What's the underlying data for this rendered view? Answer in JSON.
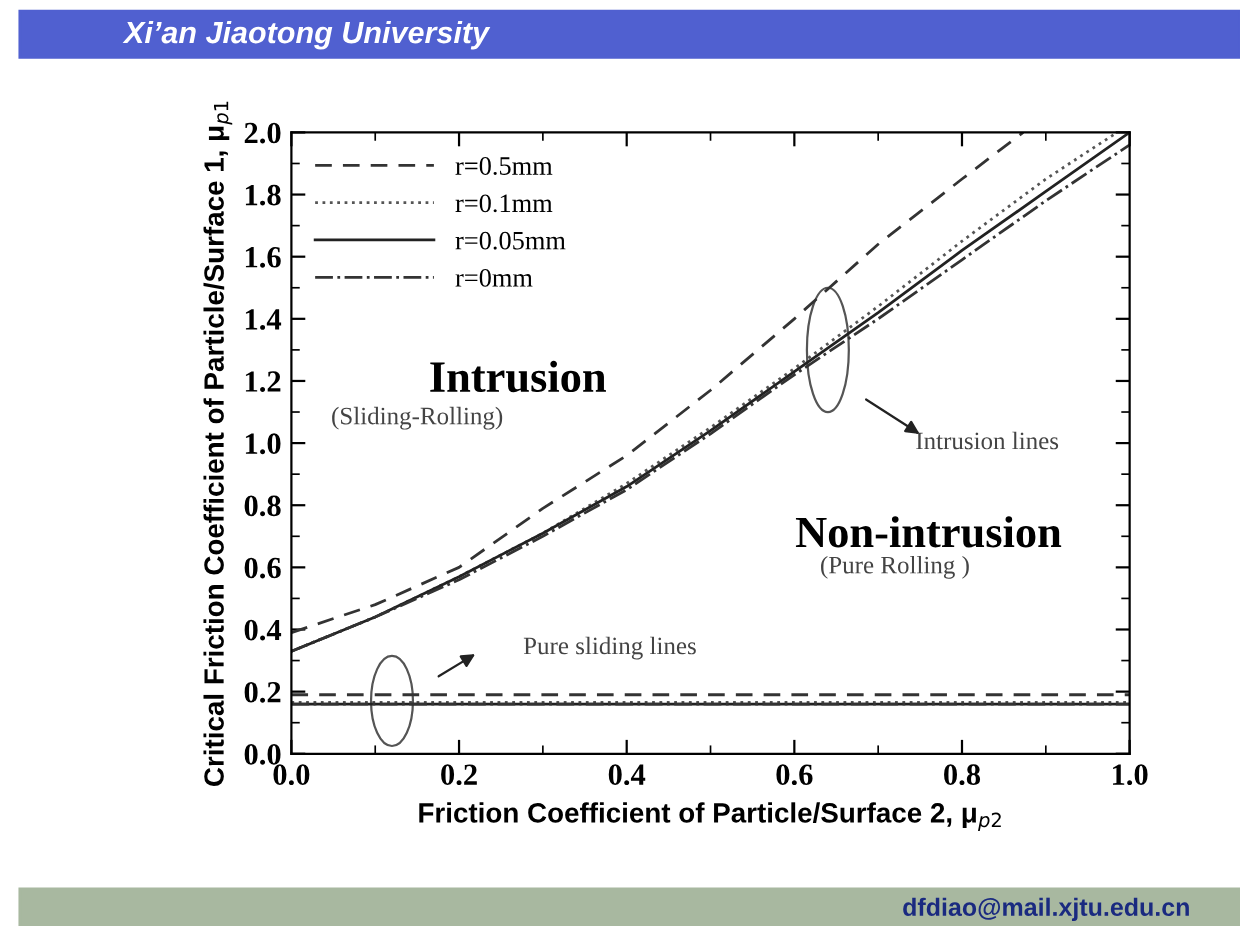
{
  "chart_data": {
    "type": "line",
    "title": "Xi’an Jiaotong University",
    "xlabel": "Friction Coefficient of Particle/Surface 2, μ$_{p2}$",
    "ylabel": "Critical Friction Coefficient of Particle/Surface 1, μ$_{p1}$",
    "series": [
      {
        "name": "r=0.5mm",
        "color": "#333333",
        "line_style": "dashed",
        "x": [
          0,
          0.1,
          0.2,
          0.3,
          0.4,
          0.5,
          0.6,
          0.7,
          0.8,
          0.873
        ],
        "values": [
          0.39,
          0.48,
          0.6,
          0.79,
          0.96,
          1.17,
          1.4,
          1.64,
          1.85,
          2.0
        ]
      },
      {
        "name": "r=0.1mm",
        "color": "#555555",
        "line_style": "dotted",
        "x": [
          0,
          0.1,
          0.2,
          0.3,
          0.4,
          0.5,
          0.6,
          0.7,
          0.8,
          0.9,
          0.985
        ],
        "values": [
          0.33,
          0.44,
          0.57,
          0.71,
          0.87,
          1.05,
          1.24,
          1.44,
          1.65,
          1.85,
          2.0
        ]
      },
      {
        "name": "r=0.05mm",
        "color": "#222222",
        "line_style": "solid",
        "x": [
          0,
          0.1,
          0.2,
          0.3,
          0.4,
          0.5,
          0.6,
          0.7,
          0.8,
          0.9,
          1.0
        ],
        "values": [
          0.33,
          0.44,
          0.57,
          0.71,
          0.86,
          1.04,
          1.23,
          1.42,
          1.62,
          1.81,
          2.0
        ]
      },
      {
        "name": "r=0mm",
        "color": "#333333",
        "line_style": "dashdot",
        "x": [
          0,
          0.1,
          0.2,
          0.3,
          0.4,
          0.5,
          0.6,
          0.7,
          0.8,
          0.9,
          1.0
        ],
        "values": [
          0.33,
          0.44,
          0.56,
          0.7,
          0.85,
          1.03,
          1.22,
          1.4,
          1.59,
          1.78,
          1.96
        ]
      },
      {
        "color": "#333333",
        "line_style": "dashed",
        "x": [
          0,
          1.0
        ],
        "values": [
          0.19,
          0.19
        ]
      },
      {
        "color": "#555555",
        "line_style": "dotted",
        "x": [
          0,
          1.0
        ],
        "values": [
          0.165,
          0.165
        ]
      },
      {
        "color": "#222222",
        "line_style": "solid",
        "x": [
          0,
          1.0
        ],
        "values": [
          0.16,
          0.16
        ]
      },
      {
        "color": "#333333",
        "line_style": "dashdot",
        "x": [
          0,
          1.0
        ],
        "values": [
          0.16,
          0.16
        ]
      }
    ],
    "xlim": [
      0,
      1.0
    ],
    "ylim": [
      0,
      2.0
    ],
    "xticks": [
      {
        "value": 0,
        "label": "0.0"
      },
      0.2,
      0.4,
      0.6,
      0.8,
      {
        "value": 1,
        "label": "1.0"
      }
    ],
    "yticks": [
      {
        "value": 0,
        "label": "0.0"
      },
      0.2,
      0.4,
      0.6,
      0.8,
      {
        "value": 1,
        "label": "1.0"
      },
      1.2,
      1.4,
      1.6,
      1.8,
      {
        "value": 2,
        "label": "2.0"
      }
    ],
    "grid": false,
    "legend": "top left",
    "marker": "none",
    "annotations": [
      "Intrusion",
      "(Sliding-Rolling)",
      "Non-intrusion",
      "(Pure Rolling )",
      "Intrusion lines",
      "Pure sliding lines",
      "dfdiao@mail.xjtu.edu.cn"
    ]
  }
}
